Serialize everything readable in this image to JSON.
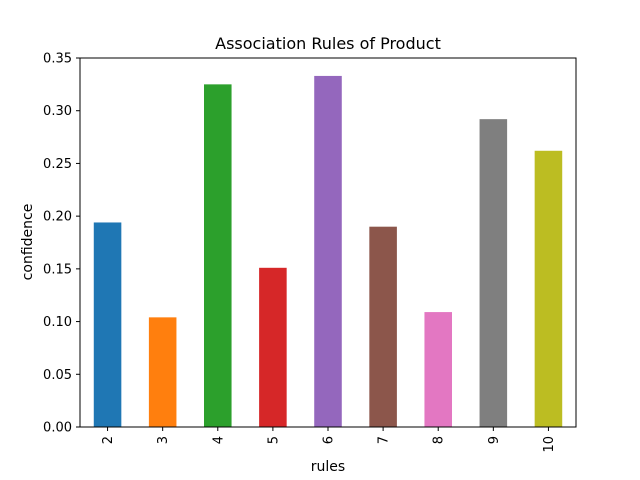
{
  "chart_data": {
    "type": "bar",
    "title": "Association Rules of Product",
    "xlabel": "rules",
    "ylabel": "confidence",
    "categories": [
      "2",
      "3",
      "4",
      "5",
      "6",
      "7",
      "8",
      "9",
      "10"
    ],
    "values": [
      0.194,
      0.104,
      0.325,
      0.151,
      0.333,
      0.19,
      0.109,
      0.292,
      0.262
    ],
    "colors": [
      "#1f77b4",
      "#ff7f0e",
      "#2ca02c",
      "#d62728",
      "#9467bd",
      "#8c564b",
      "#e377c2",
      "#7f7f7f",
      "#bcbd22"
    ],
    "ylim": [
      0,
      0.35
    ],
    "yticks": [
      "0.00",
      "0.05",
      "0.10",
      "0.15",
      "0.20",
      "0.25",
      "0.30",
      "0.35"
    ],
    "grid": false,
    "legend": "none"
  }
}
